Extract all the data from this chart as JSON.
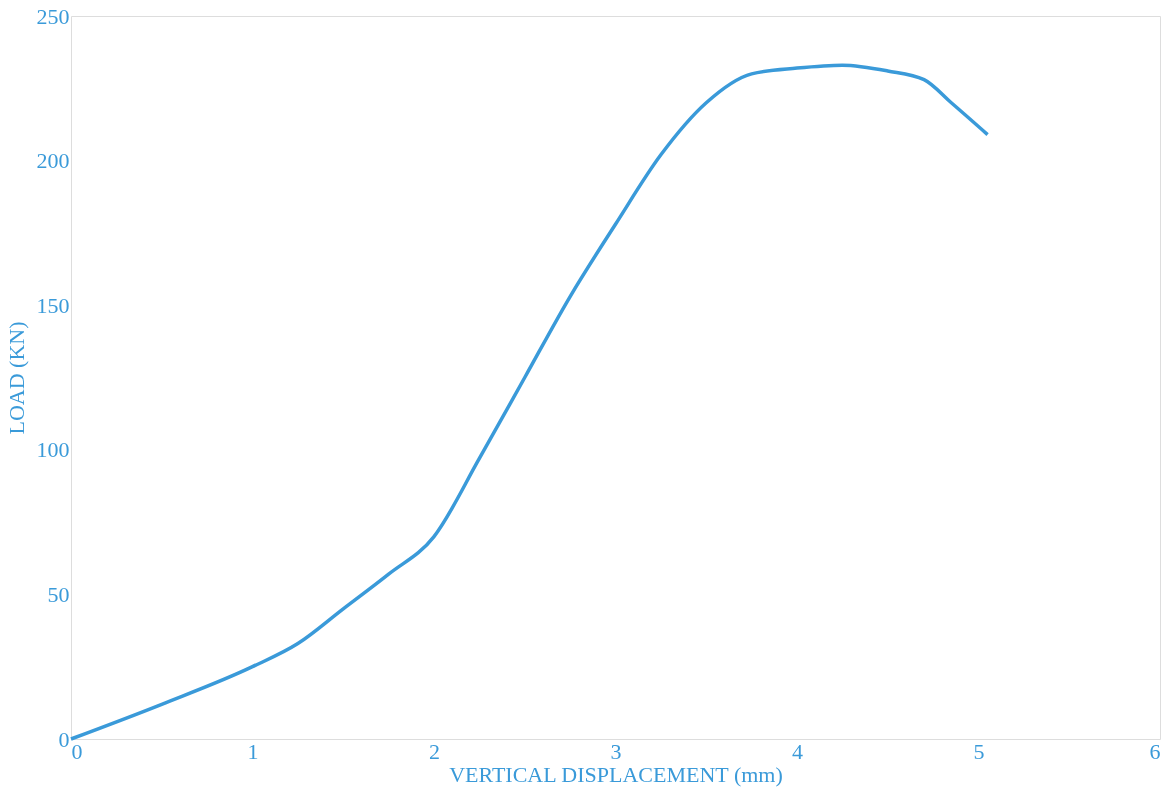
{
  "chart_data": {
    "type": "line",
    "xlabel": "VERTICAL DISPLACEMENT (mm)",
    "ylabel": "LOAD  (KN)",
    "x": [
      0,
      0.5,
      1,
      1.25,
      1.5,
      1.75,
      2,
      2.25,
      2.5,
      2.75,
      3,
      3.25,
      3.5,
      3.75,
      4,
      4.25,
      4.5,
      4.7,
      4.85,
      5.05
    ],
    "series": [
      {
        "color": "#3a9ad9",
        "values": [
          0,
          12,
          25,
          33,
          45,
          57,
          70,
          97,
          125,
          153,
          178,
          202,
          220,
          230,
          232,
          233,
          231,
          228,
          220,
          209
        ]
      }
    ],
    "xlim": [
      0,
      6
    ],
    "xticks": [
      0,
      1,
      2,
      3,
      4,
      5,
      6
    ],
    "ylim": [
      0,
      250
    ],
    "yticks": [
      0,
      50,
      100,
      150,
      200,
      250
    ],
    "grid": false,
    "legend": false,
    "marker": "none",
    "line_style": "solid"
  }
}
